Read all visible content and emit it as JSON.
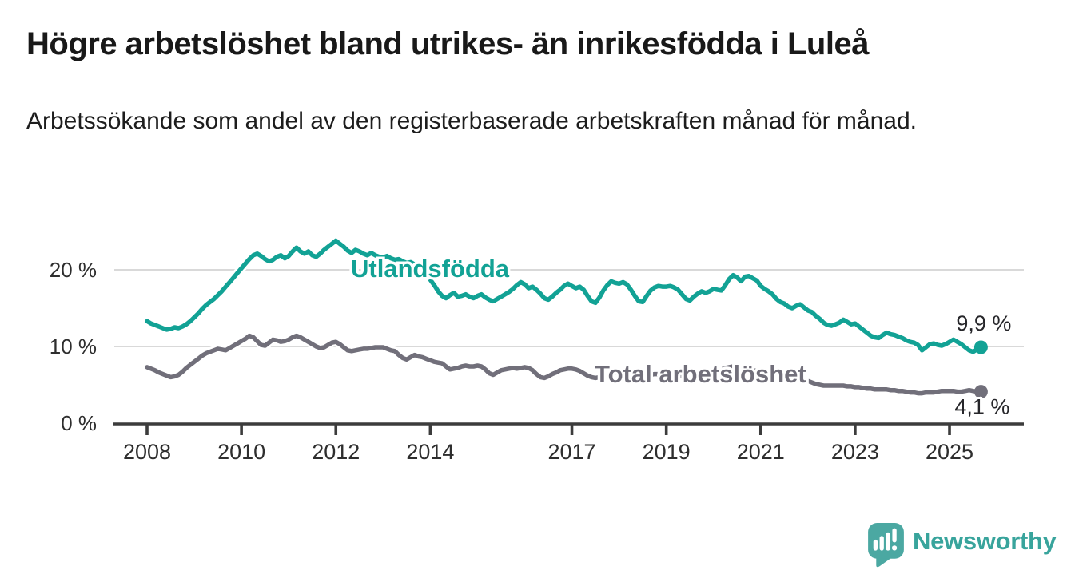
{
  "header": {
    "title": "Högre arbetslöshet bland utrikes- än inrikesfödda i Luleå",
    "subtitle": "Arbetssökande som andel av den registerbaserade arbetskraften månad för månad."
  },
  "chart_data": {
    "type": "line",
    "title": "Högre arbetslöshet bland utrikes- än inrikesfödda i Luleå",
    "subtitle": "Arbetssökande som andel av den registerbaserade arbetskraften månad för månad.",
    "unit": "%",
    "frequency": "monthly",
    "x_start_year": 2008,
    "x_ticks": [
      2008,
      2010,
      2012,
      2014,
      2017,
      2019,
      2021,
      2023,
      2025
    ],
    "x_tick_labels": [
      "2008",
      "2010",
      "2012",
      "2014",
      "2017",
      "2019",
      "2021",
      "2023",
      "2025"
    ],
    "y_ticks": [
      0,
      10,
      20
    ],
    "y_tick_labels": [
      "0 %",
      "10 %",
      "20 %"
    ],
    "ylim": [
      0,
      25
    ],
    "grid": "horizontal",
    "grid_color": "#d9d9d9",
    "legend": "inline-labels",
    "series": [
      {
        "name": "Utlandsfödda",
        "color": "#12a295",
        "end_label": "9,9 %",
        "end_value": 9.9,
        "values": [
          13.3,
          13.0,
          12.8,
          12.6,
          12.4,
          12.2,
          12.3,
          12.5,
          12.4,
          12.6,
          12.9,
          13.3,
          13.8,
          14.3,
          14.9,
          15.4,
          15.8,
          16.2,
          16.7,
          17.2,
          17.8,
          18.4,
          19.0,
          19.6,
          20.2,
          20.8,
          21.4,
          21.9,
          22.1,
          21.8,
          21.4,
          21.1,
          21.3,
          21.7,
          21.9,
          21.5,
          21.8,
          22.4,
          22.9,
          22.4,
          22.1,
          22.4,
          21.9,
          21.7,
          22.1,
          22.6,
          23.0,
          23.4,
          23.8,
          23.4,
          23.0,
          22.5,
          22.2,
          22.6,
          22.4,
          22.1,
          21.9,
          22.2,
          21.9,
          21.7,
          21.6,
          21.8,
          21.5,
          21.3,
          21.4,
          21.1,
          20.9,
          21.0,
          20.7,
          20.4,
          20.0,
          19.4,
          18.7,
          18.0,
          17.2,
          16.6,
          16.3,
          16.7,
          17.0,
          16.5,
          16.6,
          16.8,
          16.5,
          16.3,
          16.6,
          16.8,
          16.4,
          16.1,
          15.9,
          16.2,
          16.5,
          16.8,
          17.1,
          17.5,
          18.0,
          18.4,
          18.1,
          17.6,
          17.8,
          17.4,
          16.9,
          16.3,
          16.1,
          16.5,
          17.0,
          17.4,
          17.9,
          18.2,
          17.9,
          17.6,
          17.8,
          17.4,
          16.6,
          15.9,
          15.7,
          16.4,
          17.3,
          18.0,
          18.5,
          18.3,
          18.2,
          18.4,
          18.1,
          17.4,
          16.6,
          15.9,
          15.8,
          16.6,
          17.3,
          17.7,
          17.9,
          17.8,
          17.8,
          17.9,
          17.7,
          17.4,
          16.8,
          16.2,
          16.0,
          16.5,
          16.9,
          17.2,
          17.0,
          17.2,
          17.5,
          17.4,
          17.3,
          18.0,
          18.8,
          19.3,
          19.0,
          18.5,
          19.1,
          19.2,
          18.9,
          18.6,
          17.9,
          17.5,
          17.2,
          16.8,
          16.2,
          15.8,
          15.6,
          15.2,
          15.0,
          15.3,
          15.5,
          15.1,
          14.7,
          14.5,
          14.0,
          13.6,
          13.1,
          12.8,
          12.7,
          12.9,
          13.1,
          13.5,
          13.2,
          12.9,
          13.0,
          12.6,
          12.2,
          11.8,
          11.4,
          11.2,
          11.1,
          11.5,
          11.8,
          11.6,
          11.5,
          11.3,
          11.1,
          10.8,
          10.6,
          10.5,
          10.2,
          9.5,
          9.9,
          10.3,
          10.4,
          10.2,
          10.1,
          10.3,
          10.6,
          10.9,
          10.6,
          10.3,
          9.9,
          9.5,
          9.3,
          9.6,
          9.9
        ]
      },
      {
        "name": "Total arbetslöshet",
        "color": "#716f7a",
        "end_label": "4,1 %",
        "end_value": 4.1,
        "values": [
          7.3,
          7.1,
          6.9,
          6.6,
          6.4,
          6.2,
          6.0,
          6.1,
          6.3,
          6.7,
          7.2,
          7.6,
          8.0,
          8.4,
          8.8,
          9.1,
          9.3,
          9.5,
          9.7,
          9.6,
          9.5,
          9.8,
          10.1,
          10.4,
          10.7,
          11.0,
          11.4,
          11.2,
          10.7,
          10.2,
          10.1,
          10.5,
          10.9,
          10.8,
          10.6,
          10.7,
          10.9,
          11.2,
          11.4,
          11.2,
          10.9,
          10.6,
          10.3,
          10.0,
          9.8,
          9.9,
          10.2,
          10.5,
          10.6,
          10.3,
          9.9,
          9.5,
          9.4,
          9.5,
          9.6,
          9.7,
          9.7,
          9.8,
          9.9,
          9.9,
          9.9,
          9.7,
          9.5,
          9.4,
          8.9,
          8.5,
          8.3,
          8.6,
          8.9,
          8.7,
          8.6,
          8.4,
          8.2,
          8.0,
          7.9,
          7.8,
          7.4,
          7.0,
          7.1,
          7.2,
          7.4,
          7.5,
          7.4,
          7.4,
          7.5,
          7.4,
          7.0,
          6.5,
          6.3,
          6.6,
          6.9,
          7.0,
          7.1,
          7.2,
          7.1,
          7.2,
          7.3,
          7.2,
          6.9,
          6.4,
          6.0,
          5.9,
          6.1,
          6.4,
          6.6,
          6.9,
          7.0,
          7.1,
          7.1,
          7.0,
          6.8,
          6.5,
          6.2,
          6.0,
          5.9,
          6.0,
          6.2,
          6.3,
          6.5,
          6.6,
          6.6,
          6.5,
          6.4,
          6.2,
          6.0,
          5.9,
          6.0,
          6.2,
          6.3,
          6.4,
          6.4,
          6.5,
          6.5,
          6.4,
          6.3,
          6.2,
          6.1,
          6.0,
          6.1,
          6.2,
          6.3,
          6.4,
          6.5,
          6.6,
          6.7,
          6.8,
          7.0,
          7.2,
          7.3,
          7.4,
          7.3,
          7.2,
          7.1,
          7.0,
          6.9,
          6.8,
          6.7,
          6.6,
          6.5,
          6.4,
          6.3,
          6.2,
          6.1,
          6.0,
          5.9,
          5.8,
          5.7,
          5.6,
          5.5,
          5.3,
          5.1,
          5.0,
          4.9,
          4.9,
          4.9,
          4.9,
          4.9,
          4.9,
          4.8,
          4.8,
          4.7,
          4.7,
          4.6,
          4.5,
          4.5,
          4.4,
          4.4,
          4.4,
          4.4,
          4.3,
          4.3,
          4.2,
          4.2,
          4.1,
          4.0,
          4.0,
          3.9,
          3.9,
          4.0,
          4.0,
          4.0,
          4.1,
          4.2,
          4.2,
          4.2,
          4.2,
          4.1,
          4.1,
          4.2,
          4.3,
          4.2,
          4.1,
          4.1
        ]
      }
    ]
  },
  "colors": {
    "accent_teal": "#12a295",
    "series_gray": "#716f7a",
    "grid": "#d9d9d9",
    "axis": "#3c3c3c",
    "text": "#191919",
    "logo_teal": "#4ba8a2",
    "brand_text_teal": "#38a49c"
  },
  "footer": {
    "brand": "Newsworthy",
    "logo_icon": "speech-bubble-bar-chart-icon"
  }
}
